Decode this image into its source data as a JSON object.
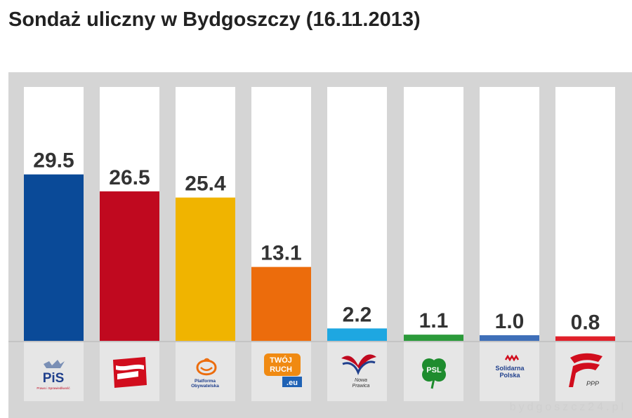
{
  "title": "Sondaż uliczny w Bydgoszczy (16.11.2013)",
  "watermark": "bydgoszcz24.pl",
  "chart_data": {
    "type": "bar",
    "categories": [
      "PiS",
      "SLD",
      "Platforma Obywatelska",
      "Twój Ruch",
      "Nowa Prawica",
      "PSL",
      "Solidarna Polska",
      "PPP"
    ],
    "values": [
      29.5,
      26.5,
      25.4,
      13.1,
      2.2,
      1.1,
      1.0,
      0.8
    ],
    "value_labels": [
      "29.5",
      "26.5",
      "25.4",
      "13.1",
      "2.2",
      "1.1",
      "1.0",
      "0.8"
    ],
    "colors": [
      "#0a4a98",
      "#c0091f",
      "#f0b400",
      "#ec6c0c",
      "#1ea7e1",
      "#2b9a3a",
      "#3f6fb8",
      "#e0202a"
    ],
    "ylim": [
      0,
      45
    ],
    "grid": false,
    "legend": "none"
  },
  "logos": {
    "pis": {
      "text": "PiS",
      "subtext": "Prawo i Sprawiedliwość"
    },
    "po": {
      "line1": "Platforma",
      "line2": "Obywatelska"
    },
    "twojruch": {
      "line1": "TWÓJ",
      "line2": "RUCH",
      "line3": ".eu"
    },
    "nowaprawica": {
      "line1": "Nowa",
      "line2": "Prawica"
    },
    "psl": {
      "text": "PSL"
    },
    "sp": {
      "line1": "Solidarna",
      "line2": "Polska"
    },
    "ppp": {
      "text": "PPP"
    }
  }
}
